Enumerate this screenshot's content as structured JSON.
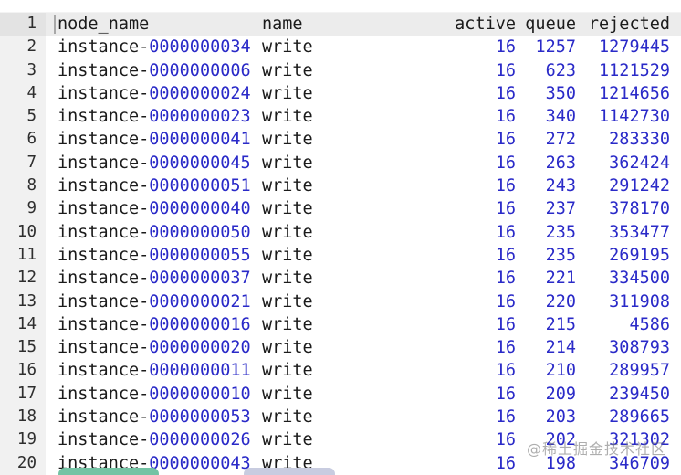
{
  "editor": {
    "header_line_number": "1",
    "headers": {
      "node_name": "node_name",
      "name": "name",
      "active": "active",
      "queue": "queue",
      "rejected": "rejected"
    },
    "node_prefix": "instance-",
    "rows": [
      {
        "line": "2",
        "id": "0000000034",
        "name": "write",
        "active": "16",
        "queue": "1257",
        "rejected": "1279445"
      },
      {
        "line": "3",
        "id": "0000000006",
        "name": "write",
        "active": "16",
        "queue": "623",
        "rejected": "1121529"
      },
      {
        "line": "4",
        "id": "0000000024",
        "name": "write",
        "active": "16",
        "queue": "350",
        "rejected": "1214656"
      },
      {
        "line": "5",
        "id": "0000000023",
        "name": "write",
        "active": "16",
        "queue": "340",
        "rejected": "1142730"
      },
      {
        "line": "6",
        "id": "0000000041",
        "name": "write",
        "active": "16",
        "queue": "272",
        "rejected": "283330"
      },
      {
        "line": "7",
        "id": "0000000045",
        "name": "write",
        "active": "16",
        "queue": "263",
        "rejected": "362424"
      },
      {
        "line": "8",
        "id": "0000000051",
        "name": "write",
        "active": "16",
        "queue": "243",
        "rejected": "291242"
      },
      {
        "line": "9",
        "id": "0000000040",
        "name": "write",
        "active": "16",
        "queue": "237",
        "rejected": "378170"
      },
      {
        "line": "10",
        "id": "0000000050",
        "name": "write",
        "active": "16",
        "queue": "235",
        "rejected": "353477"
      },
      {
        "line": "11",
        "id": "0000000055",
        "name": "write",
        "active": "16",
        "queue": "235",
        "rejected": "269195"
      },
      {
        "line": "12",
        "id": "0000000037",
        "name": "write",
        "active": "16",
        "queue": "221",
        "rejected": "334500"
      },
      {
        "line": "13",
        "id": "0000000021",
        "name": "write",
        "active": "16",
        "queue": "220",
        "rejected": "311908"
      },
      {
        "line": "14",
        "id": "0000000016",
        "name": "write",
        "active": "16",
        "queue": "215",
        "rejected": "4586"
      },
      {
        "line": "15",
        "id": "0000000020",
        "name": "write",
        "active": "16",
        "queue": "214",
        "rejected": "308793"
      },
      {
        "line": "16",
        "id": "0000000011",
        "name": "write",
        "active": "16",
        "queue": "210",
        "rejected": "289957"
      },
      {
        "line": "17",
        "id": "0000000010",
        "name": "write",
        "active": "16",
        "queue": "209",
        "rejected": "239450"
      },
      {
        "line": "18",
        "id": "0000000053",
        "name": "write",
        "active": "16",
        "queue": "203",
        "rejected": "289665"
      },
      {
        "line": "19",
        "id": "0000000026",
        "name": "write",
        "active": "16",
        "queue": "202",
        "rejected": "321302"
      },
      {
        "line": "20",
        "id": "0000000043",
        "name": "write",
        "active": "16",
        "queue": "198",
        "rejected": "346709"
      }
    ]
  },
  "watermark": "@稀土掘金技术社区",
  "colors": {
    "accent_blue": "#2a2ac8",
    "gutter_bg": "#f1f1f1",
    "highlight_row_bg": "#ececec",
    "pill_green": "#73c3a4",
    "pill_lavender": "#c8cce0"
  }
}
